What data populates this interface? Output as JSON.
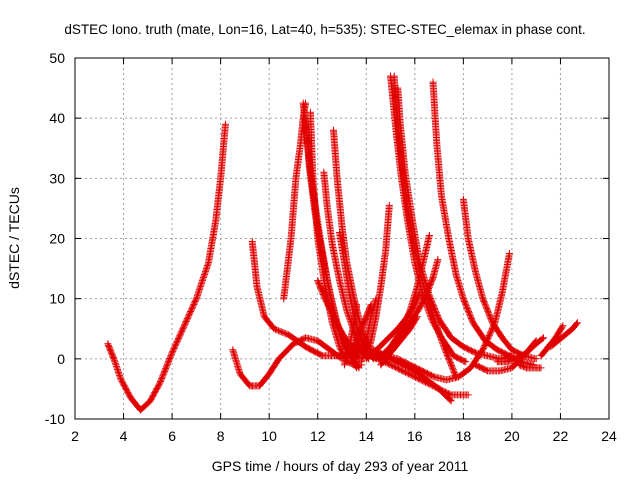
{
  "chart_data": {
    "type": "scatter",
    "title": "dSTEC Iono. truth (mate, Lon=16, Lat=40, h=535): STEC-STEC_elemax in phase cont.",
    "xlabel": "GPS time / hours of day 293 of year 2011",
    "ylabel": "dSTEC  / TECUs",
    "xlim": [
      2,
      24
    ],
    "ylim": [
      -10,
      50
    ],
    "xticks": [
      2,
      4,
      6,
      8,
      10,
      12,
      14,
      16,
      18,
      20,
      22,
      24
    ],
    "yticks": [
      -10,
      0,
      10,
      20,
      30,
      40,
      50
    ],
    "xtick_labels": [
      "2",
      "4",
      "6",
      "8",
      "10",
      "12",
      "14",
      "16",
      "18",
      "20",
      "22",
      "24"
    ],
    "ytick_labels": [
      "-10",
      "0",
      "10",
      "20",
      "30",
      "40",
      "50"
    ],
    "grid": true,
    "marker": "+",
    "color": "#e00000",
    "series": [
      {
        "x": [
          3.35,
          3.6,
          3.9,
          4.3,
          4.7,
          5.1,
          5.5,
          6.0,
          6.5,
          7.0,
          7.5,
          7.8,
          8.0,
          8.2
        ],
        "values": [
          2.5,
          0,
          -3.5,
          -6.5,
          -8.5,
          -7,
          -4,
          1,
          5.5,
          10,
          16,
          23,
          30,
          39
        ]
      },
      {
        "x": [
          8.5,
          8.8,
          9.2,
          9.6,
          10.0,
          10.4,
          11.0,
          11.5,
          12.0,
          12.5,
          13.0
        ],
        "values": [
          1.5,
          -2.5,
          -4.5,
          -4.5,
          -2.5,
          0,
          2.5,
          3.5,
          3,
          1.5,
          0
        ]
      },
      {
        "x": [
          9.3,
          9.5,
          9.8,
          10.2,
          10.8,
          11.5,
          12.2,
          13.0,
          13.8,
          14.5,
          15.5,
          16.5,
          17.5,
          18.2
        ],
        "values": [
          19.5,
          12,
          7,
          5,
          4,
          2,
          0.5,
          0.5,
          1,
          0,
          -2,
          -4,
          -6,
          -6
        ]
      },
      {
        "x": [
          10.6,
          10.9,
          11.1,
          11.3,
          11.4,
          11.5
        ],
        "values": [
          10,
          20,
          30,
          36,
          40,
          42.5
        ]
      },
      {
        "x": [
          11.4,
          11.6,
          11.8,
          12.1,
          12.4,
          12.7,
          13.0,
          13.3,
          13.6
        ],
        "values": [
          42.5,
          35,
          28,
          20,
          13,
          7,
          3,
          1,
          -1.5
        ]
      },
      {
        "x": [
          11.5,
          11.65,
          11.9,
          12.2,
          12.5,
          12.8,
          13.1,
          13.4,
          13.7
        ],
        "values": [
          40,
          32,
          24,
          17,
          11,
          6,
          2.5,
          0.5,
          -1.5
        ]
      },
      {
        "x": [
          11.7,
          11.8,
          12.0,
          12.3,
          12.6,
          12.9,
          13.2,
          13.5,
          13.8
        ],
        "values": [
          41,
          30,
          20,
          12,
          6,
          2,
          -0.5,
          -1,
          -1
        ]
      },
      {
        "x": [
          12.25,
          12.4,
          12.6,
          12.9,
          13.2,
          13.5,
          13.8,
          14.1
        ],
        "values": [
          31,
          25,
          19,
          13,
          8,
          4.5,
          1.5,
          0
        ]
      },
      {
        "x": [
          12.65,
          12.8,
          13.0,
          13.2,
          13.5,
          13.8,
          14.1,
          14.4
        ],
        "values": [
          38,
          30,
          22,
          16,
          10,
          5,
          2,
          0
        ]
      },
      {
        "x": [
          12.9,
          13.1,
          13.3,
          13.5,
          13.7,
          14.0,
          14.3
        ],
        "values": [
          21,
          16,
          11,
          7,
          4,
          1.5,
          0
        ]
      },
      {
        "x": [
          12.0,
          12.3,
          12.6,
          12.9,
          13.2,
          13.5,
          13.7
        ],
        "values": [
          13,
          10,
          7.5,
          5,
          3,
          1.5,
          0
        ]
      },
      {
        "x": [
          13.1,
          13.3,
          13.5,
          13.6
        ],
        "values": [
          -1,
          2,
          6,
          9
        ]
      },
      {
        "x": [
          13.8,
          14.0,
          14.2,
          14.4
        ],
        "values": [
          -0.5,
          3,
          7,
          10
        ]
      },
      {
        "x": [
          14.0,
          14.2,
          14.4,
          14.6,
          14.8,
          14.95
        ],
        "values": [
          0,
          3,
          7,
          12,
          18,
          25.5
        ]
      },
      {
        "x": [
          13.4,
          13.6,
          13.8,
          14.0,
          14.2
        ],
        "values": [
          1,
          3,
          5,
          7,
          9
        ]
      },
      {
        "x": [
          15.0,
          15.1,
          15.25,
          15.45,
          15.7,
          16.0,
          16.3,
          16.7,
          17.1,
          17.6,
          18.1
        ],
        "values": [
          47,
          43,
          37,
          30,
          23,
          16,
          11,
          6.5,
          3.5,
          0.5,
          -0.5
        ]
      },
      {
        "x": [
          15.15,
          15.25,
          15.45,
          15.7,
          16.0,
          16.4,
          16.8,
          17.2,
          17.7
        ],
        "values": [
          47,
          41,
          33,
          25,
          18,
          11.5,
          6.5,
          2,
          -3
        ]
      },
      {
        "x": [
          15.3,
          15.4,
          15.6,
          15.9,
          16.2,
          16.6,
          17.0,
          17.5,
          18.0,
          18.5,
          19.0,
          19.5,
          20.0
        ],
        "values": [
          45,
          39,
          31,
          23,
          16,
          10.5,
          6.5,
          3.5,
          2,
          1,
          0.5,
          0,
          0.5
        ]
      },
      {
        "x": [
          16.75,
          16.9,
          17.1,
          17.4,
          17.7,
          18.0,
          18.4,
          18.9,
          19.4,
          19.9,
          20.4,
          20.9
        ],
        "values": [
          46,
          36,
          27,
          20,
          14,
          10,
          6,
          3,
          1.5,
          0.5,
          -0.5,
          -1
        ]
      },
      {
        "x": [
          18.0,
          18.2,
          18.5,
          18.8,
          19.2,
          19.6,
          20.0,
          20.5,
          21.0
        ],
        "values": [
          26.5,
          20,
          14.5,
          10,
          6,
          3.5,
          1.5,
          0.5,
          0
        ]
      },
      {
        "x": [
          14.3,
          14.8,
          15.3,
          15.8,
          16.3,
          16.8,
          17.3,
          17.8,
          18.3,
          18.8,
          19.3,
          19.6,
          19.9
        ],
        "values": [
          1.5,
          0.5,
          0,
          -1,
          -2,
          -3,
          -3.5,
          -3,
          -1.5,
          1.5,
          6,
          11,
          17.5
        ]
      },
      {
        "x": [
          14.5,
          15.0,
          15.5,
          15.8,
          16.1,
          16.4,
          16.6
        ],
        "values": [
          0,
          2,
          5,
          8,
          12,
          17,
          20.5
        ]
      },
      {
        "x": [
          14.8,
          15.3,
          15.8,
          16.2,
          16.5,
          16.75,
          16.95
        ],
        "values": [
          0,
          3,
          6,
          8.5,
          11,
          13.5,
          16.5
        ]
      },
      {
        "x": [
          14.3,
          14.8,
          15.3,
          15.7,
          16.0,
          16.2
        ],
        "values": [
          1,
          3,
          5,
          7,
          9,
          11
        ]
      },
      {
        "x": [
          14.6,
          15.0,
          15.4,
          15.8,
          16.1
        ],
        "values": [
          -1,
          1,
          3,
          5,
          7
        ]
      },
      {
        "x": [
          13.5,
          14.0,
          14.5,
          15.0,
          15.5,
          16.0,
          16.5,
          17.0,
          17.5
        ],
        "values": [
          2,
          1,
          0.5,
          0,
          -1,
          -2,
          -3.5,
          -5,
          -7
        ]
      },
      {
        "x": [
          18.5,
          19.0,
          19.5,
          20.0,
          20.5,
          21.0
        ],
        "values": [
          -1,
          -2,
          -2,
          -1.5,
          0.5,
          3
        ]
      },
      {
        "x": [
          19.4,
          19.8,
          20.2,
          20.6,
          21.0,
          21.3
        ],
        "values": [
          -0.5,
          -0.5,
          0,
          1,
          2.5,
          3.5
        ]
      },
      {
        "x": [
          20.3,
          20.6,
          20.9,
          21.2
        ],
        "values": [
          -1,
          -1.5,
          -1.5,
          -1.5
        ]
      },
      {
        "x": [
          21.2,
          21.5,
          21.8,
          22.1
        ],
        "values": [
          0.5,
          2,
          3.5,
          5.5
        ]
      },
      {
        "x": [
          21.6,
          21.9,
          22.2,
          22.5,
          22.7
        ],
        "values": [
          2,
          3,
          4,
          5,
          6
        ]
      }
    ]
  }
}
